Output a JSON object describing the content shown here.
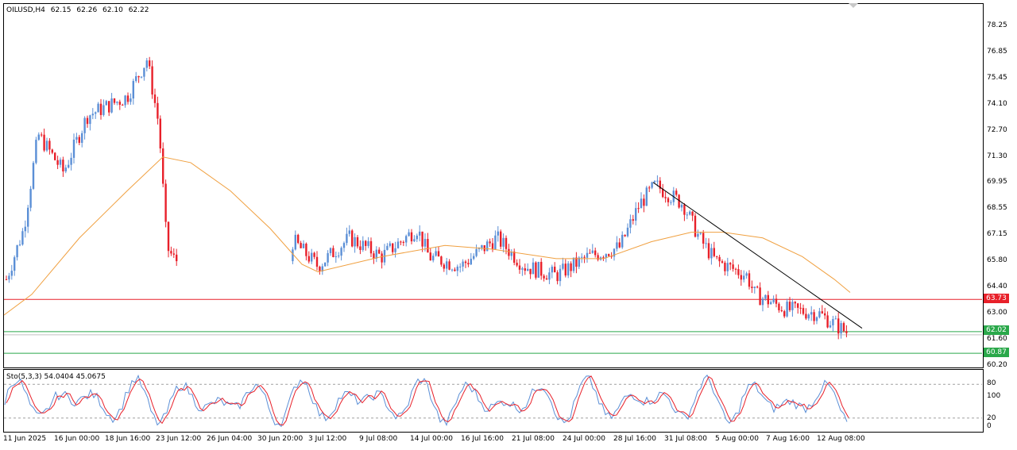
{
  "header": {
    "symbol": "OILUSD,H4",
    "open": "62.15",
    "high": "62.26",
    "low": "62.10",
    "close": "62.22"
  },
  "price_axis": [
    "78.25",
    "76.85",
    "75.45",
    "74.10",
    "72.70",
    "71.30",
    "69.95",
    "68.55",
    "67.15",
    "65.80",
    "64.40",
    "63.00",
    "61.60",
    "60.20"
  ],
  "price_tags": [
    {
      "label": "63.73",
      "color": "#e8202a"
    },
    {
      "label": "62.02",
      "color": "#2aa84a"
    },
    {
      "label": "60.87",
      "color": "#2aa84a"
    }
  ],
  "stoch": {
    "label": "Sto(5,3,3) 54.0404 45.0675",
    "axis": [
      "100",
      "80",
      "20",
      "0"
    ],
    "levels": [
      80,
      20
    ]
  },
  "time_axis": [
    "11 Jun 2025",
    "16 Jun 00:00",
    "18 Jun 16:00",
    "23 Jun 12:00",
    "26 Jun 04:00",
    "30 Jun 20:00",
    "3 Jul 12:00",
    "9 Jul 08:00",
    "14 Jul 00:00",
    "16 Jul 16:00",
    "21 Jul 08:00",
    "24 Jul 00:00",
    "28 Jul 16:00",
    "31 Jul 08:00",
    "5 Aug 00:00",
    "7 Aug 16:00",
    "12 Aug 08:00"
  ],
  "colors": {
    "bull": "#5b8fd6",
    "bear": "#e8202a",
    "ma": "#f0a040",
    "resistance": "#e8202a",
    "support": "#2aa84a",
    "trendline": "#000000",
    "stoch_main": "#5b8fd6",
    "stoch_signal": "#e8202a"
  }
}
